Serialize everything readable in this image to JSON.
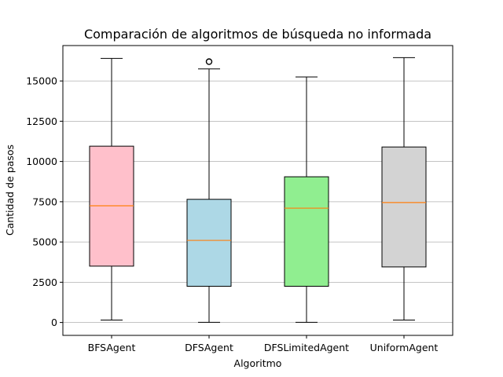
{
  "chart_data": {
    "type": "box",
    "title": "Comparación de algoritmos de búsqueda no informada",
    "xlabel": "Algoritmo",
    "ylabel": "Cantidad de pasos",
    "ylim": [
      -800,
      17200
    ],
    "yticks": [
      0,
      2500,
      5000,
      7500,
      10000,
      12500,
      15000
    ],
    "grid": "y",
    "categories": [
      "BFSAgent",
      "DFSAgent",
      "DFSLimitedAgent",
      "UniformAgent"
    ],
    "boxes": [
      {
        "name": "BFSAgent",
        "whisker_low": 150,
        "q1": 3500,
        "median": 7250,
        "q3": 10950,
        "whisker_high": 16400,
        "fliers": [],
        "color": "#ffc0cb"
      },
      {
        "name": "DFSAgent",
        "whisker_low": 10,
        "q1": 2250,
        "median": 5100,
        "q3": 7650,
        "whisker_high": 15750,
        "fliers": [
          16200
        ],
        "color": "#add8e6"
      },
      {
        "name": "DFSLimitedAgent",
        "whisker_low": 10,
        "q1": 2250,
        "median": 7100,
        "q3": 9050,
        "whisker_high": 15250,
        "fliers": [],
        "color": "#90ee90"
      },
      {
        "name": "UniformAgent",
        "whisker_low": 150,
        "q1": 3450,
        "median": 7450,
        "q3": 10900,
        "whisker_high": 16450,
        "fliers": [],
        "color": "#d3d3d3"
      }
    ],
    "median_color": "#ff7f0e"
  }
}
